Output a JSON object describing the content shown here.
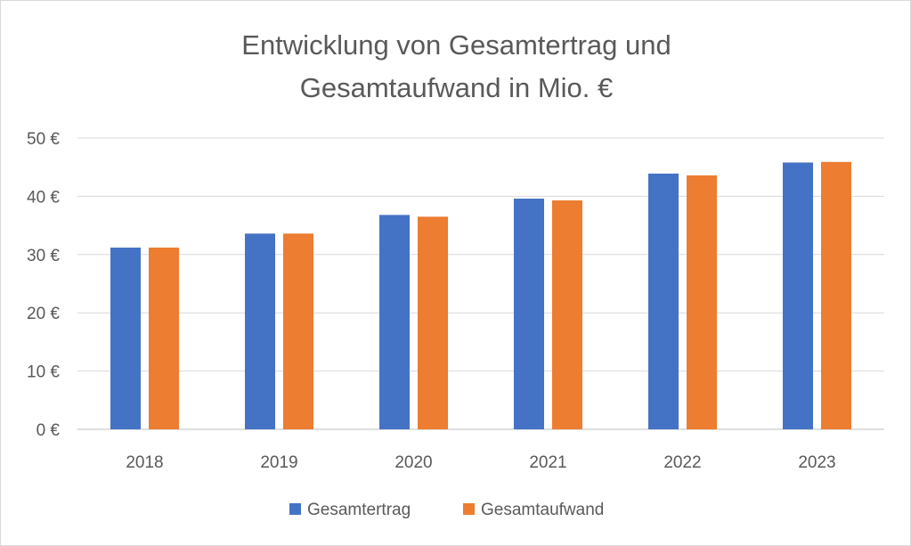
{
  "chart_data": {
    "type": "bar",
    "title_lines": [
      "Entwicklung von Gesamtertrag und",
      "Gesamtaufwand in Mio. €"
    ],
    "categories": [
      "2018",
      "2019",
      "2020",
      "2021",
      "2022",
      "2023"
    ],
    "series": [
      {
        "name": "Gesamtertrag",
        "color": "#4472c4",
        "values": [
          31.2,
          33.6,
          36.8,
          39.6,
          43.9,
          45.8
        ]
      },
      {
        "name": "Gesamtaufwand",
        "color": "#ed7d31",
        "values": [
          31.2,
          33.6,
          36.5,
          39.3,
          43.6,
          45.9
        ]
      }
    ],
    "ylim": [
      0,
      50
    ],
    "yticks": [
      0,
      10,
      20,
      30,
      40,
      50
    ],
    "ytick_labels": [
      "0 €",
      "10 €",
      "20 €",
      "30 €",
      "40 €",
      "50 €"
    ],
    "grid": true,
    "legend_position": "bottom"
  }
}
